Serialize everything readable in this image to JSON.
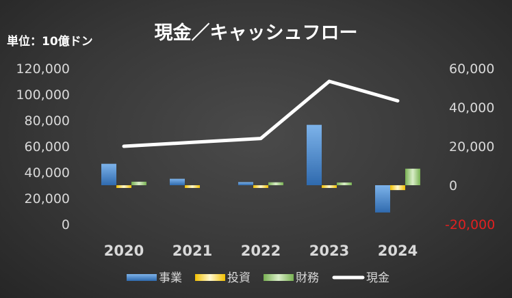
{
  "title": "現金／キャッシュフロー",
  "unit_label": "単位：10億ドン",
  "colors": {
    "operating": "#4f86c6",
    "investing": "#f5c518",
    "financing": "#8fbf6e",
    "cash": "#ffffff",
    "negative_tick": "#e02020",
    "tick_text": "#d9d9d9"
  },
  "chart_data": {
    "type": "bar",
    "categories": [
      "2020",
      "2021",
      "2022",
      "2023",
      "2024"
    ],
    "series": [
      {
        "name": "事業",
        "axis": "right",
        "values": [
          11000,
          3300,
          1600,
          31000,
          -14000
        ]
      },
      {
        "name": "投資",
        "axis": "right",
        "values": [
          -300,
          -500,
          -1200,
          -1200,
          -2500
        ]
      },
      {
        "name": "財務",
        "axis": "right",
        "values": [
          1800,
          0,
          1500,
          1000,
          8500
        ]
      },
      {
        "name": "現金",
        "type": "line",
        "axis": "left",
        "values": [
          60000,
          63000,
          66000,
          110000,
          95000
        ]
      }
    ],
    "y_left": {
      "ticks": [
        "120,000",
        "100,000",
        "80,000",
        "60,000",
        "40,000",
        "20,000",
        "0"
      ],
      "ylim": [
        0,
        120000
      ]
    },
    "y_right": {
      "ticks": [
        "60,000",
        "40,000",
        "20,000",
        "0",
        "-20,000"
      ],
      "ylim": [
        -20000,
        60000
      ]
    },
    "legend": {
      "position": "bottom",
      "entries": [
        "事業",
        "投資",
        "財務",
        "現金"
      ]
    }
  }
}
